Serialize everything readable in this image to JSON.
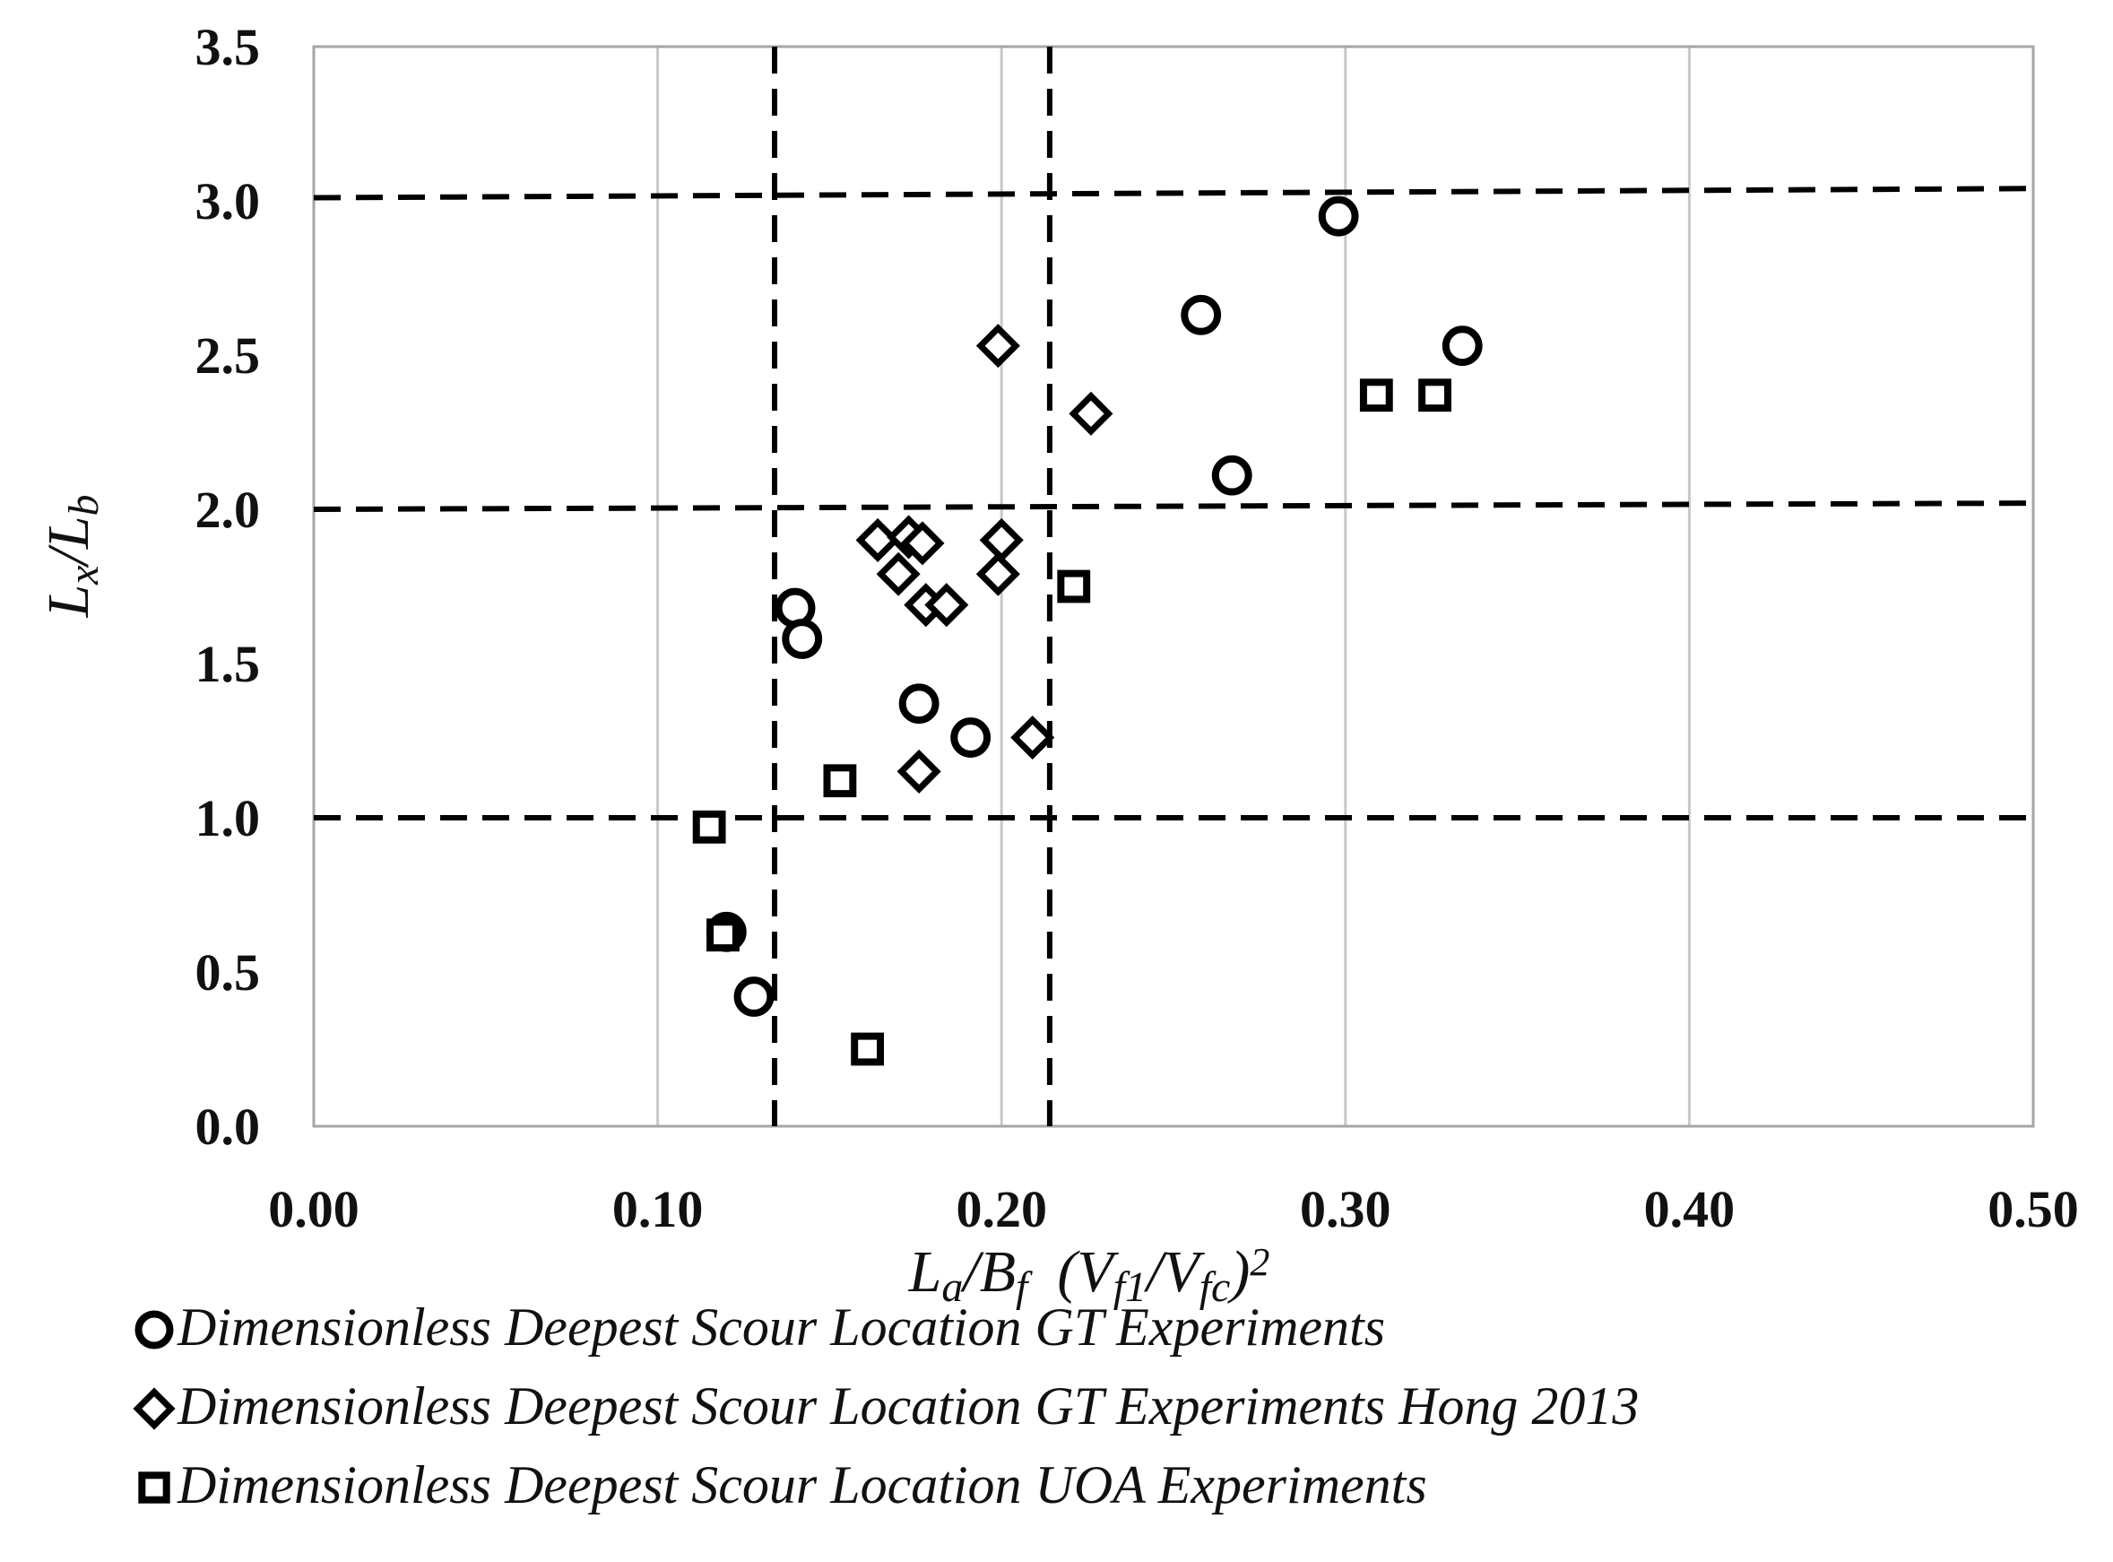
{
  "chart_data": {
    "type": "scatter",
    "title": "",
    "xlabel": {
      "main1": "L",
      "sub1": "a",
      "main2": "/B",
      "sub2": "f",
      "main3": "  (V",
      "sub3": "f1",
      "main4": "/V",
      "sub4": "fc",
      "main5": ")",
      "sup": "2"
    },
    "ylabel": {
      "main1": "L",
      "sub1": "x",
      "main2": "/L",
      "sub2": "b"
    },
    "xlim": [
      0,
      0.5
    ],
    "ylim": [
      0,
      3.5
    ],
    "x_ticks": [
      0,
      0.1,
      0.2,
      0.3,
      0.4,
      0.5
    ],
    "x_tick_labels": [
      "0.00",
      "0.10",
      "0.20",
      "0.30",
      "0.40",
      "0.50"
    ],
    "y_ticks": [
      0,
      0.5,
      1,
      1.5,
      2,
      2.5,
      3,
      3.5
    ],
    "y_tick_labels": [
      "0.0",
      "0.5",
      "1.0",
      "1.5",
      "2.0",
      "2.5",
      "3.0",
      "3.5"
    ],
    "vertical_gridlines": true,
    "horizontal_gridlines": false,
    "reference_lines": [
      {
        "orientation": "vertical",
        "x_start": 0.134,
        "x_end": 0.134
      },
      {
        "orientation": "vertical",
        "x_start": 0.214,
        "x_end": 0.214
      },
      {
        "orientation": "horizontal",
        "y_start": 3.01,
        "y_end": 3.04
      },
      {
        "orientation": "horizontal",
        "y_start": 2.0,
        "y_end": 2.02
      },
      {
        "orientation": "horizontal",
        "y_start": 1.0,
        "y_end": 1.0
      }
    ],
    "legend_position": "bottom",
    "series": [
      {
        "name": "Dimensionless Deepest Scour Location GT Experiments",
        "marker": "circle",
        "x": [
          0.298,
          0.258,
          0.334,
          0.267,
          0.14,
          0.142,
          0.176,
          0.191,
          0.12,
          0.128
        ],
        "y": [
          2.95,
          2.63,
          2.53,
          2.11,
          1.68,
          1.58,
          1.37,
          1.26,
          0.63,
          0.42
        ]
      },
      {
        "name": "Dimensionless Deepest Scour Location GT Experiments Hong 2013",
        "marker": "diamond",
        "x": [
          0.199,
          0.226,
          0.164,
          0.173,
          0.177,
          0.2,
          0.17,
          0.199,
          0.178,
          0.184,
          0.209,
          0.176
        ],
        "y": [
          2.53,
          2.31,
          1.9,
          1.91,
          1.89,
          1.9,
          1.79,
          1.79,
          1.69,
          1.69,
          1.26,
          1.15
        ]
      },
      {
        "name": "Dimensionless Deepest Scour Location UOA Experiments",
        "marker": "square",
        "x": [
          0.309,
          0.326,
          0.221,
          0.153,
          0.115,
          0.119,
          0.161
        ],
        "y": [
          2.37,
          2.37,
          1.75,
          1.12,
          0.97,
          0.62,
          0.25
        ]
      }
    ]
  }
}
